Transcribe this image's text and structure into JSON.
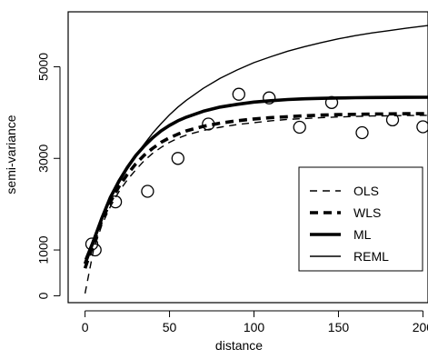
{
  "chart_data": {
    "type": "scatter",
    "xlabel": "distance",
    "ylabel": "semi-variance",
    "xlim": [
      -10,
      203
    ],
    "ylim": [
      -150,
      6200
    ],
    "x_ticks": [
      0,
      50,
      100,
      150,
      200
    ],
    "y_ticks": [
      0,
      1000,
      3000,
      5000
    ],
    "x_tick_labels": [
      "0",
      "50",
      "100",
      "150",
      "200"
    ],
    "y_tick_labels": [
      "0",
      "1000",
      "3000",
      "5000"
    ],
    "grid": false,
    "legend_position": "bottom-right",
    "points": {
      "x": [
        4,
        6,
        18,
        37,
        55,
        73,
        91,
        109,
        127,
        146,
        164,
        182,
        200
      ],
      "y": [
        1130,
        1000,
        2050,
        2280,
        3000,
        3750,
        4400,
        4320,
        3680,
        4220,
        3560,
        3840,
        3690
      ]
    },
    "series": [
      {
        "name": "OLS",
        "style": "dashed",
        "weight": "thin",
        "x": [
          0,
          5,
          10,
          15,
          20,
          25,
          30,
          35,
          40,
          45,
          50,
          55,
          60,
          70,
          80,
          90,
          100,
          110,
          120,
          130,
          140,
          150,
          160,
          170,
          180,
          190,
          203
        ],
        "y": [
          50,
          1000,
          1550,
          1950,
          2270,
          2530,
          2750,
          2950,
          3110,
          3240,
          3350,
          3440,
          3510,
          3610,
          3680,
          3740,
          3780,
          3820,
          3850,
          3870,
          3890,
          3905,
          3915,
          3925,
          3930,
          3935,
          3940
        ]
      },
      {
        "name": "WLS",
        "style": "dashed",
        "weight": "thick",
        "x": [
          0,
          5,
          10,
          15,
          20,
          25,
          30,
          35,
          40,
          45,
          50,
          55,
          60,
          70,
          80,
          90,
          100,
          110,
          120,
          130,
          140,
          150,
          160,
          170,
          180,
          190,
          203
        ],
        "y": [
          600,
          1150,
          1650,
          2050,
          2380,
          2650,
          2880,
          3070,
          3220,
          3350,
          3450,
          3530,
          3600,
          3700,
          3770,
          3820,
          3860,
          3890,
          3910,
          3930,
          3945,
          3955,
          3962,
          3968,
          3972,
          3975,
          3978
        ]
      },
      {
        "name": "ML",
        "style": "solid",
        "weight": "thick",
        "x": [
          0,
          5,
          10,
          15,
          20,
          25,
          30,
          35,
          40,
          45,
          50,
          55,
          60,
          70,
          80,
          90,
          100,
          110,
          120,
          130,
          140,
          150,
          160,
          170,
          180,
          190,
          203
        ],
        "y": [
          700,
          1200,
          1700,
          2150,
          2500,
          2800,
          3060,
          3270,
          3450,
          3600,
          3720,
          3820,
          3900,
          4030,
          4120,
          4180,
          4230,
          4260,
          4285,
          4300,
          4310,
          4318,
          4324,
          4328,
          4331,
          4333,
          4335
        ]
      },
      {
        "name": "REML",
        "style": "solid",
        "weight": "thin",
        "x": [
          0,
          5,
          10,
          15,
          20,
          25,
          30,
          35,
          40,
          45,
          50,
          55,
          60,
          70,
          80,
          90,
          100,
          110,
          120,
          130,
          140,
          150,
          160,
          170,
          180,
          190,
          203
        ],
        "y": [
          800,
          1250,
          1700,
          2100,
          2460,
          2780,
          3060,
          3310,
          3550,
          3760,
          3950,
          4120,
          4270,
          4530,
          4750,
          4930,
          5090,
          5220,
          5340,
          5440,
          5530,
          5610,
          5680,
          5740,
          5790,
          5840,
          5900
        ]
      }
    ]
  }
}
